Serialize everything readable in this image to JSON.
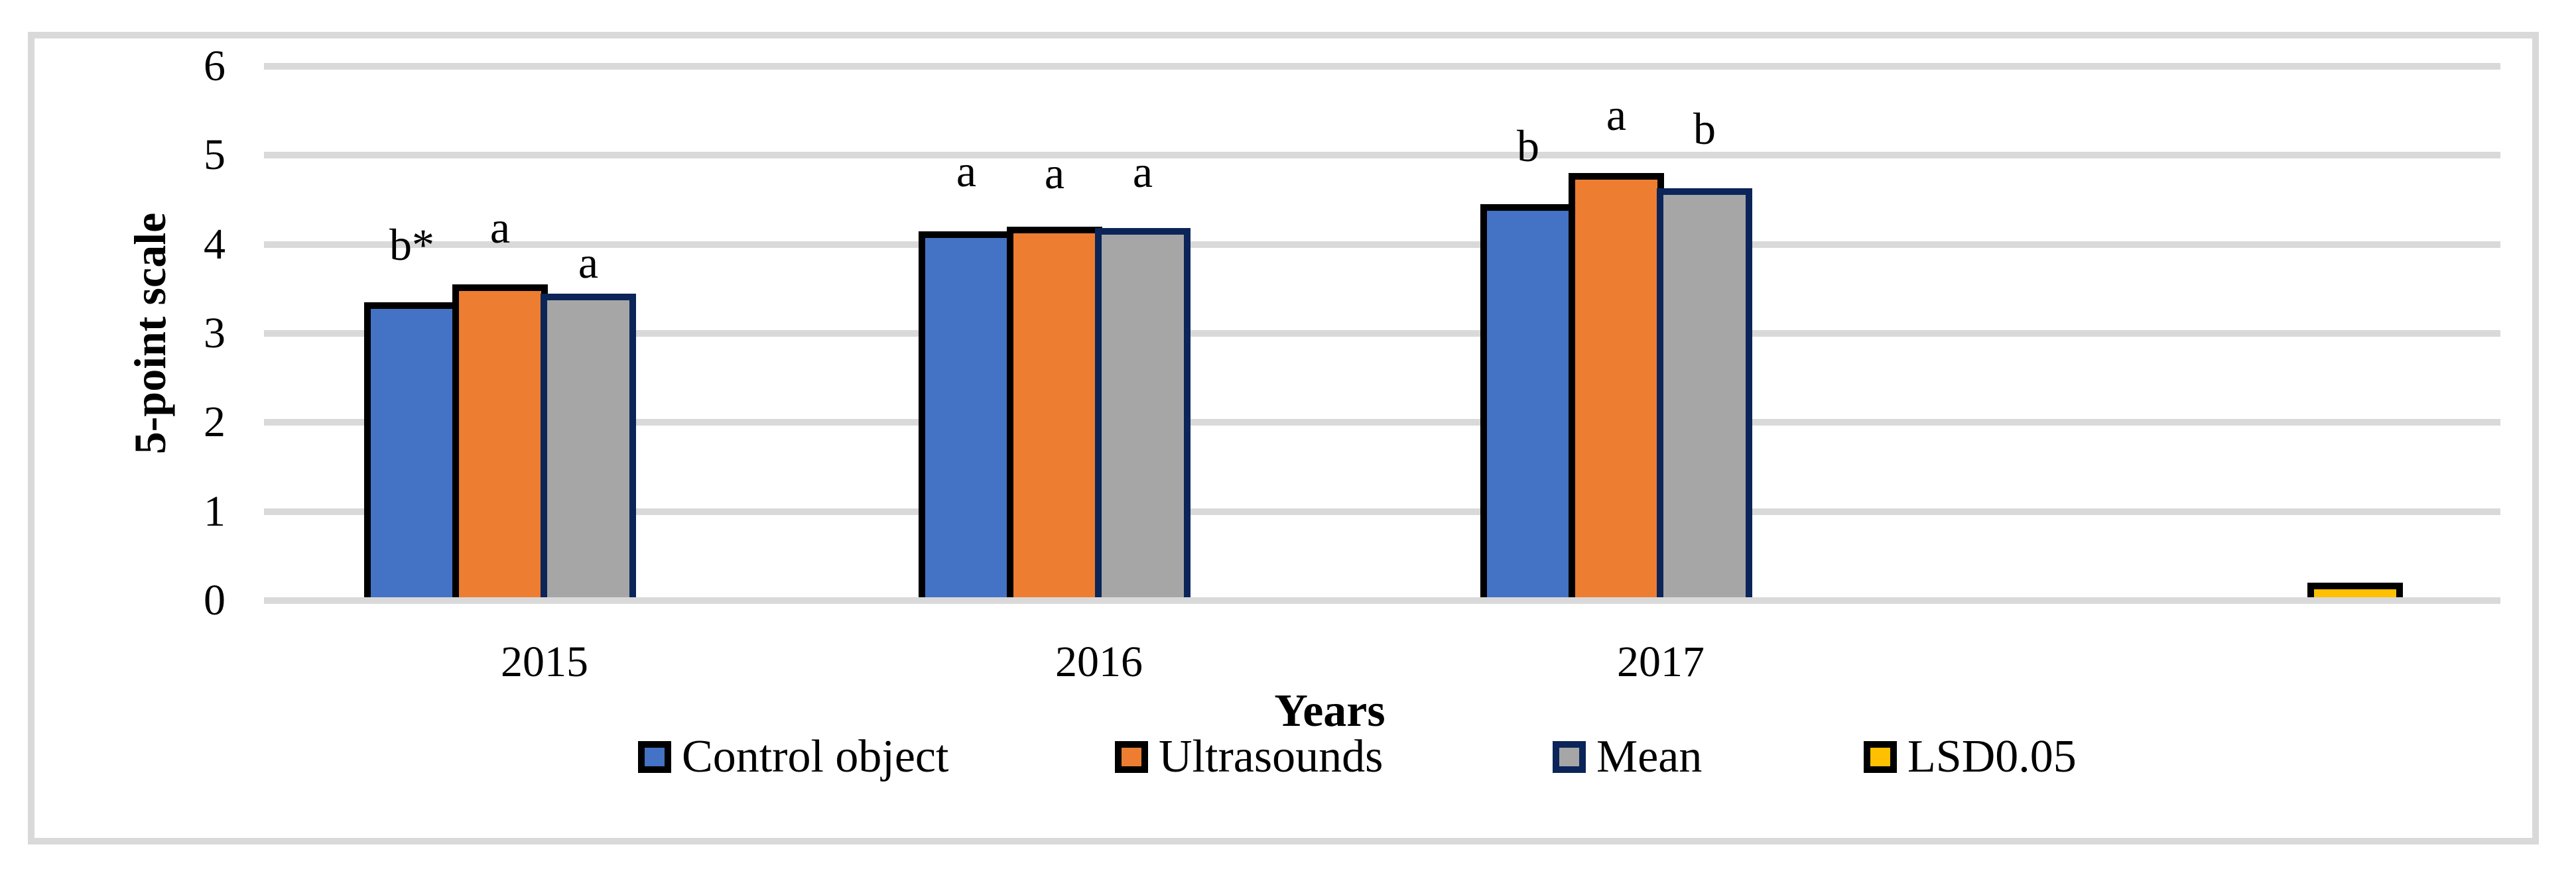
{
  "chart_data": {
    "type": "bar",
    "title": "",
    "xlabel": "Years",
    "ylabel": "5-point scale",
    "ylim": [
      0,
      6
    ],
    "yticks": [
      0,
      1,
      2,
      3,
      4,
      5,
      6
    ],
    "categories": [
      "2015",
      "2016",
      "2017"
    ],
    "series": [
      {
        "name": "Control object",
        "color": "#4472C4",
        "border_color": "#000000",
        "values": [
          3.35,
          4.15,
          4.45
        ],
        "sig_labels": [
          "b*",
          "a",
          "b"
        ]
      },
      {
        "name": "Ultrasounds",
        "color": "#ED7D31",
        "border_color": "#000000",
        "values": [
          3.55,
          4.2,
          4.8
        ],
        "sig_labels": [
          "a",
          "a",
          "a"
        ]
      },
      {
        "name": "Mean",
        "color": "#A6A6A6",
        "border_color": "#0B2559",
        "values": [
          3.45,
          4.18,
          4.63
        ],
        "sig_labels": [
          "a",
          "a",
          "b"
        ]
      },
      {
        "name": "LSD0.05",
        "color": "#FFC000",
        "border_color": "#000000",
        "values": [],
        "standalone_value": 0.2
      }
    ],
    "grid": true,
    "legend_position": "bottom",
    "gridline_color": "#D9D9D9",
    "frame_color": "#D9D9D9"
  }
}
